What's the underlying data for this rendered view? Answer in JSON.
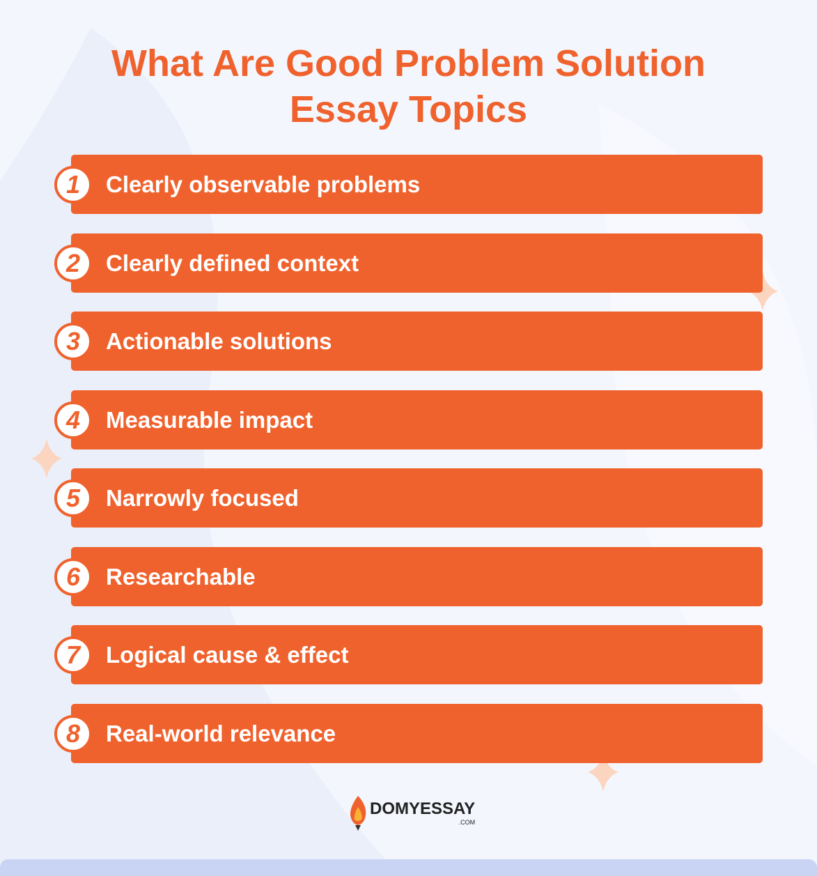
{
  "header": {
    "title_lines": [
      "What Are Good Problem Solution",
      "Essay Topics"
    ]
  },
  "items": [
    {
      "number": "1",
      "label": "Clearly observable problems"
    },
    {
      "number": "2",
      "label": "Clearly defined context"
    },
    {
      "number": "3",
      "label": "Actionable solutions"
    },
    {
      "number": "4",
      "label": "Measurable impact"
    },
    {
      "number": "5",
      "label": "Narrowly focused"
    },
    {
      "number": "6",
      "label": "Researchable"
    },
    {
      "number": "7",
      "label": "Logical cause & effect"
    },
    {
      "number": "8",
      "label": "Real-world relevance"
    }
  ],
  "footer": {
    "brand": "DOMYESSAY",
    "domain": ".COM"
  }
}
